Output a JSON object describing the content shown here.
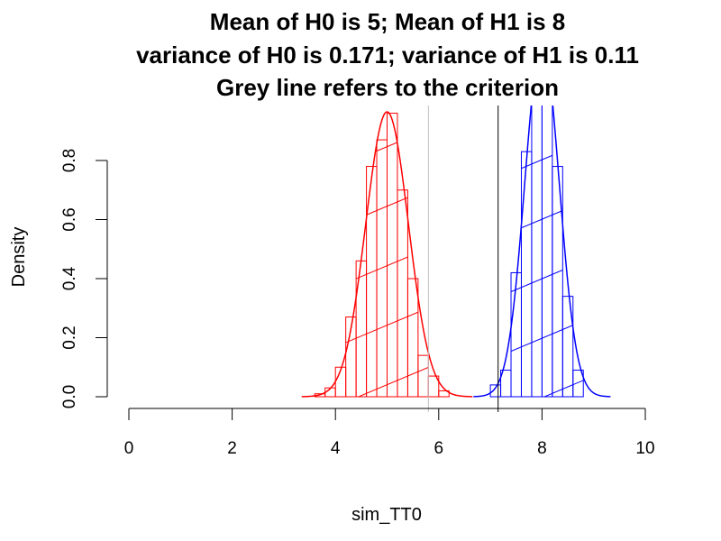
{
  "chart_data": {
    "type": "histogram",
    "title_lines": [
      "Mean of H0 is 5; Mean of H1 is 8",
      "variance of H0 is 0.171; variance of H1 is 0.11",
      "Grey line refers to the criterion"
    ],
    "xlabel": "sim_TT0",
    "ylabel": "Density",
    "xlim": [
      0,
      10
    ],
    "ylim": [
      0,
      0.95
    ],
    "x_ticks": [
      0,
      2,
      4,
      6,
      8,
      10
    ],
    "y_ticks": [
      0.0,
      0.2,
      0.4,
      0.6,
      0.8
    ],
    "y_tick_labels": [
      "0.0",
      "0.2",
      "0.4",
      "0.6",
      "0.8"
    ],
    "series": [
      {
        "color": "#ff0000",
        "bin_width": 0.2,
        "bin_starts": [
          3.2,
          3.4,
          3.6,
          3.8,
          4.0,
          4.2,
          4.4,
          4.6,
          4.8,
          5.0,
          5.2,
          5.4,
          5.6,
          5.8,
          6.0,
          6.2
        ],
        "density": [
          0.0,
          0.0,
          0.01,
          0.03,
          0.1,
          0.27,
          0.46,
          0.78,
          0.87,
          0.96,
          0.7,
          0.4,
          0.14,
          0.07,
          0.02,
          0.0
        ],
        "curve": {
          "mean": 5,
          "variance": 0.171
        }
      },
      {
        "color": "#0000ff",
        "bin_width": 0.2,
        "bin_starts": [
          6.8,
          7.0,
          7.2,
          7.4,
          7.6,
          7.8,
          8.0,
          8.2,
          8.4,
          8.6,
          8.8
        ],
        "density": [
          0.0,
          0.04,
          0.09,
          0.42,
          0.83,
          1.05,
          1.07,
          0.78,
          0.34,
          0.09,
          0.0
        ],
        "curve": {
          "mean": 8,
          "variance": 0.11
        }
      }
    ],
    "vertical_lines": [
      {
        "x": 5.8,
        "color": "#c0c0c0"
      },
      {
        "x": 7.15,
        "color": "#000000"
      }
    ]
  }
}
